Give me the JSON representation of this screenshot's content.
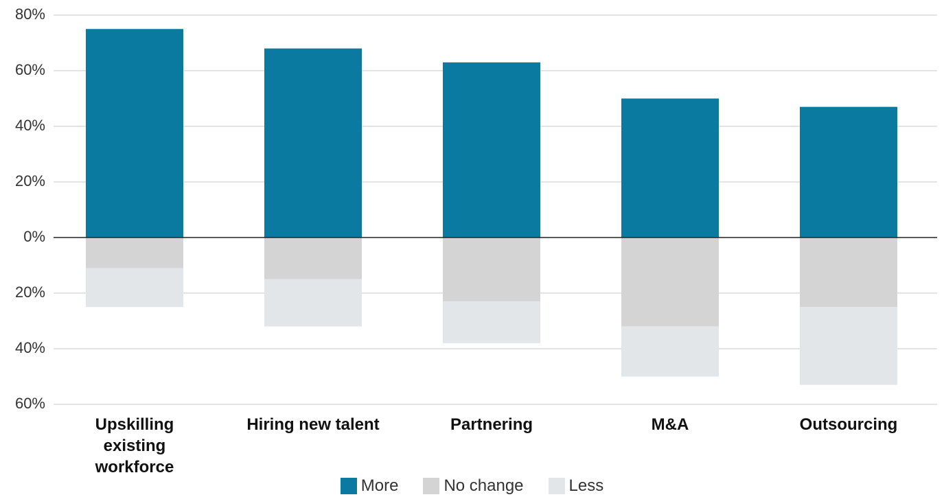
{
  "chart_data": {
    "type": "diverging_stacked_bar",
    "categories": [
      "Upskilling existing workforce",
      "Hiring new talent",
      "Partnering",
      "M&A",
      "Outsourcing"
    ],
    "series": [
      {
        "name": "More",
        "color": "#0a7aa1",
        "values": [
          75,
          68,
          63,
          50,
          47
        ]
      },
      {
        "name": "No change",
        "color": "#d4d4d4",
        "values": [
          -11,
          -15,
          -23,
          -32,
          -25
        ]
      },
      {
        "name": "Less",
        "color": "#e3e6e8",
        "values": [
          -14,
          -17,
          -15,
          -18,
          -28
        ]
      }
    ],
    "ylim": [
      -60,
      80
    ],
    "yticks": [
      {
        "value": -60,
        "label": "60%"
      },
      {
        "value": -40,
        "label": "40%"
      },
      {
        "value": -20,
        "label": "20%"
      },
      {
        "value": 0,
        "label": "0%"
      },
      {
        "value": 20,
        "label": "20%"
      },
      {
        "value": 40,
        "label": "40%"
      },
      {
        "value": 60,
        "label": "60%"
      },
      {
        "value": 80,
        "label": "80%"
      }
    ],
    "grid": true,
    "legend": "bottom"
  }
}
